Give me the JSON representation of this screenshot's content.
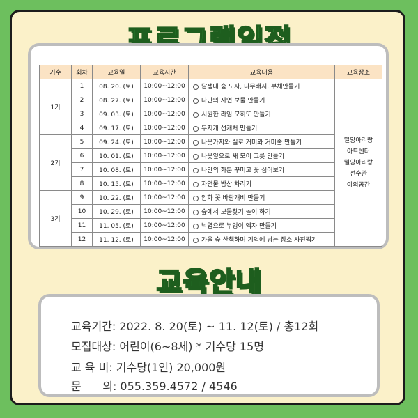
{
  "title_program": "프로그램일정",
  "title_education": "교육안내",
  "table": {
    "headers": [
      "기수",
      "회차",
      "교육일",
      "교육시간",
      "교육내용",
      "교육장소"
    ],
    "groups": [
      "1기",
      "2기",
      "3기"
    ],
    "location": [
      "밀양아리랑",
      "아트센터",
      "밀양아리랑",
      "전수관",
      "야외공간"
    ],
    "rows": [
      {
        "no": "1",
        "date": "08. 20. (토)",
        "time": "10:00~12:00",
        "content": "담쟁대 숲 모자, 나무배지, 부채만들기"
      },
      {
        "no": "2",
        "date": "08. 27. (토)",
        "time": "10:00~12:00",
        "content": "나만의 자연 보물 만들기"
      },
      {
        "no": "3",
        "date": "09. 03. (토)",
        "time": "10:00~12:00",
        "content": "시원한 라임 모히또 만들기"
      },
      {
        "no": "4",
        "date": "09. 17. (토)",
        "time": "10:00~12:00",
        "content": "무지개 선캐처 만들기"
      },
      {
        "no": "5",
        "date": "09. 24. (토)",
        "time": "10:00~12:00",
        "content": "나뭇가지와 실로 거미와 거미줄 만들기"
      },
      {
        "no": "6",
        "date": "10. 01. (토)",
        "time": "10:00~12:00",
        "content": "나뭇잎으로 새 모이 그릇 만들기"
      },
      {
        "no": "7",
        "date": "10. 08. (토)",
        "time": "10:00~12:00",
        "content": "나만의 화분 꾸미고 꽃 심어보기"
      },
      {
        "no": "8",
        "date": "10. 15. (토)",
        "time": "10:00~12:00",
        "content": "자연물 밥상 차리기"
      },
      {
        "no": "9",
        "date": "10. 22. (토)",
        "time": "10:00~12:00",
        "content": "압화 꽃 바람개비 만들기"
      },
      {
        "no": "10",
        "date": "10. 29. (토)",
        "time": "10:00~12:00",
        "content": "숲에서 보물찾기 놀이 하기"
      },
      {
        "no": "11",
        "date": "11. 05. (토)",
        "time": "10:00~12:00",
        "content": "낙엽으로 부엉이 액자 만들기"
      },
      {
        "no": "12",
        "date": "11. 12. (토)",
        "time": "10:00~12:00",
        "content": "가을 숲 산책하며 기억에 남는 장소 사진찍기"
      }
    ]
  },
  "info": {
    "period": "교육기간: 2022. 8. 20(토) ~ 11. 12(토) / 총12회",
    "target": "모집대상: 어린이(6~8세)  * 기수당 15명",
    "fee": "교 육 비: 기수당(1인) 20,000원",
    "contact": "문      의: 055.359.4572 / 4546"
  }
}
